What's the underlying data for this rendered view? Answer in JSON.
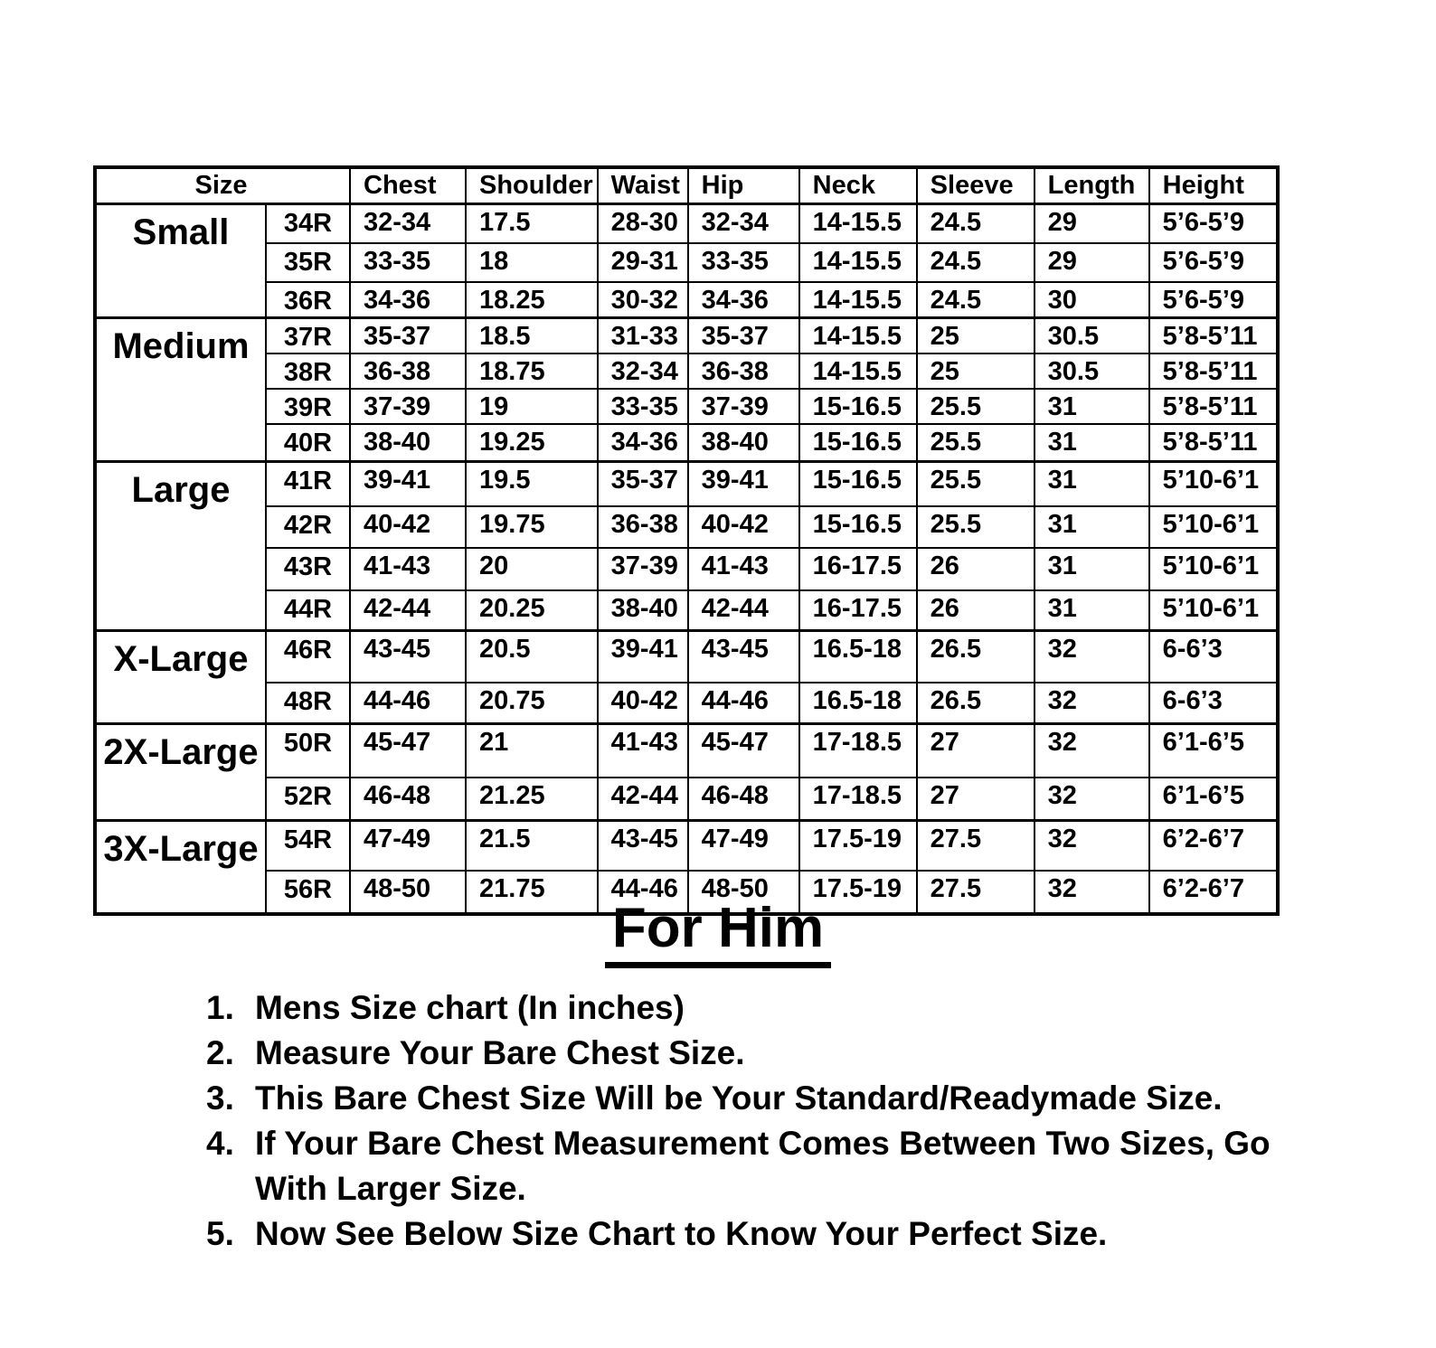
{
  "colors": {
    "background": "#ffffff",
    "text": "#000000",
    "border": "#000000"
  },
  "table": {
    "headers": [
      "Size",
      "Chest",
      "Shoulder",
      "Waist",
      "Hip",
      "Neck",
      "Sleeve",
      "Length",
      "Height"
    ],
    "groups": [
      {
        "size": "Small",
        "rows": [
          {
            "code": "34R",
            "chest": "32-34",
            "shoulder": "17.5",
            "waist": "28-30",
            "hip": "32-34",
            "neck": "14-15.5",
            "sleeve": "24.5",
            "length": "29",
            "height": "5’6-5’9"
          },
          {
            "code": "35R",
            "chest": "33-35",
            "shoulder": "18",
            "waist": "29-31",
            "hip": "33-35",
            "neck": "14-15.5",
            "sleeve": "24.5",
            "length": "29",
            "height": "5’6-5’9"
          },
          {
            "code": "36R",
            "chest": "34-36",
            "shoulder": "18.25",
            "waist": "30-32",
            "hip": "34-36",
            "neck": "14-15.5",
            "sleeve": "24.5",
            "length": "30",
            "height": "5’6-5’9"
          }
        ]
      },
      {
        "size": "Medium",
        "rows": [
          {
            "code": "37R",
            "chest": "35-37",
            "shoulder": "18.5",
            "waist": "31-33",
            "hip": "35-37",
            "neck": "14-15.5",
            "sleeve": "25",
            "length": "30.5",
            "height": "5’8-5’11"
          },
          {
            "code": "38R",
            "chest": "36-38",
            "shoulder": "18.75",
            "waist": "32-34",
            "hip": "36-38",
            "neck": "14-15.5",
            "sleeve": "25",
            "length": "30.5",
            "height": "5’8-5’11"
          },
          {
            "code": "39R",
            "chest": "37-39",
            "shoulder": "19",
            "waist": "33-35",
            "hip": "37-39",
            "neck": "15-16.5",
            "sleeve": "25.5",
            "length": "31",
            "height": "5’8-5’11"
          },
          {
            "code": "40R",
            "chest": "38-40",
            "shoulder": "19.25",
            "waist": "34-36",
            "hip": "38-40",
            "neck": "15-16.5",
            "sleeve": "25.5",
            "length": "31",
            "height": "5’8-5’11"
          }
        ]
      },
      {
        "size": "Large",
        "rows": [
          {
            "code": "41R",
            "chest": "39-41",
            "shoulder": "19.5",
            "waist": "35-37",
            "hip": "39-41",
            "neck": "15-16.5",
            "sleeve": "25.5",
            "length": "31",
            "height": "5’10-6’1"
          },
          {
            "code": "42R",
            "chest": "40-42",
            "shoulder": "19.75",
            "waist": "36-38",
            "hip": "40-42",
            "neck": "15-16.5",
            "sleeve": "25.5",
            "length": "31",
            "height": "5’10-6’1"
          },
          {
            "code": "43R",
            "chest": "41-43",
            "shoulder": "20",
            "waist": "37-39",
            "hip": "41-43",
            "neck": "16-17.5",
            "sleeve": "26",
            "length": "31",
            "height": "5’10-6’1"
          },
          {
            "code": "44R",
            "chest": "42-44",
            "shoulder": "20.25",
            "waist": "38-40",
            "hip": "42-44",
            "neck": "16-17.5",
            "sleeve": "26",
            "length": "31",
            "height": "5’10-6’1"
          }
        ]
      },
      {
        "size": "X-Large",
        "rows": [
          {
            "code": "46R",
            "chest": "43-45",
            "shoulder": "20.5",
            "waist": "39-41",
            "hip": "43-45",
            "neck": "16.5-18",
            "sleeve": "26.5",
            "length": "32",
            "height": "6-6’3"
          },
          {
            "code": "48R",
            "chest": "44-46",
            "shoulder": "20.75",
            "waist": "40-42",
            "hip": "44-46",
            "neck": "16.5-18",
            "sleeve": "26.5",
            "length": "32",
            "height": "6-6’3"
          }
        ]
      },
      {
        "size": "2X-Large",
        "rows": [
          {
            "code": "50R",
            "chest": "45-47",
            "shoulder": "21",
            "waist": "41-43",
            "hip": "45-47",
            "neck": "17-18.5",
            "sleeve": "27",
            "length": "32",
            "height": "6’1-6’5"
          },
          {
            "code": "52R",
            "chest": "46-48",
            "shoulder": "21.25",
            "waist": "42-44",
            "hip": "46-48",
            "neck": "17-18.5",
            "sleeve": "27",
            "length": "32",
            "height": "6’1-6’5"
          }
        ]
      },
      {
        "size": "3X-Large",
        "rows": [
          {
            "code": "54R",
            "chest": "47-49",
            "shoulder": "21.5",
            "waist": "43-45",
            "hip": "47-49",
            "neck": "17.5-19",
            "sleeve": "27.5",
            "length": "32",
            "height": "6’2-6’7"
          },
          {
            "code": "56R",
            "chest": "48-50",
            "shoulder": "21.75",
            "waist": "44-46",
            "hip": "48-50",
            "neck": "17.5-19",
            "sleeve": "27.5",
            "length": "32",
            "height": "6’2-6’7"
          }
        ]
      }
    ]
  },
  "heading": "For Him",
  "instructions": [
    {
      "num": "1.",
      "text": "Mens Size chart (In inches)"
    },
    {
      "num": "2.",
      "text": "Measure Your Bare Chest Size."
    },
    {
      "num": "3.",
      "text": "This Bare Chest Size Will be Your Standard/Readymade Size."
    },
    {
      "num": "4.",
      "text": "If Your Bare Chest Measurement Comes Between Two Sizes, Go\nWith Larger Size."
    },
    {
      "num": "5.",
      "text": "Now See Below Size Chart to Know Your Perfect Size."
    }
  ]
}
